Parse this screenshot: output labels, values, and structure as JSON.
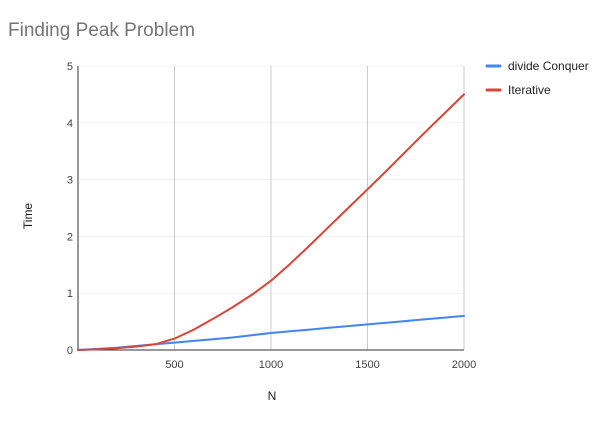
{
  "chart_data": {
    "type": "line",
    "title": "Finding Peak Problem",
    "xlabel": "N",
    "ylabel": "Time",
    "xlim": [
      0,
      2000
    ],
    "ylim": [
      0,
      5
    ],
    "x_ticks": [
      500,
      1000,
      1500,
      2000
    ],
    "y_ticks": [
      0,
      1,
      2,
      3,
      4,
      5
    ],
    "vertical_grid": true,
    "horizontal_grid": false,
    "legend_position": "right",
    "series": [
      {
        "name": "divide Conquer",
        "color": "#4285f4",
        "x": [
          0,
          100,
          200,
          300,
          400,
          500,
          600,
          700,
          800,
          900,
          1000,
          1100,
          1200,
          1300,
          1400,
          1500,
          1600,
          1700,
          1800,
          1900,
          2000
        ],
        "values": [
          0,
          0.02,
          0.04,
          0.07,
          0.1,
          0.13,
          0.16,
          0.19,
          0.22,
          0.26,
          0.3,
          0.33,
          0.36,
          0.39,
          0.42,
          0.45,
          0.48,
          0.51,
          0.54,
          0.57,
          0.6
        ]
      },
      {
        "name": "Iterative",
        "color": "#db4437",
        "x": [
          0,
          100,
          200,
          300,
          400,
          500,
          600,
          700,
          800,
          900,
          1000,
          1100,
          1200,
          1300,
          1400,
          1500,
          1600,
          1700,
          1800,
          1900,
          2000
        ],
        "values": [
          0,
          0.01,
          0.03,
          0.06,
          0.1,
          0.2,
          0.36,
          0.55,
          0.75,
          0.97,
          1.22,
          1.52,
          1.84,
          2.17,
          2.5,
          2.83,
          3.16,
          3.5,
          3.84,
          4.17,
          4.5
        ]
      }
    ]
  }
}
